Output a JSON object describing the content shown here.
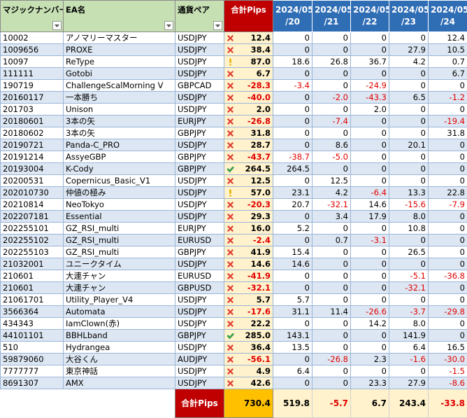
{
  "table": {
    "headers": {
      "magic": "マジックナンバー",
      "ea": "EA名",
      "pair": "通貨ペア",
      "total": "合計Pips",
      "dates": [
        [
          "2024/05",
          "/20"
        ],
        [
          "2024/05",
          "/21"
        ],
        [
          "2024/05",
          "/22"
        ],
        [
          "2024/05",
          "/23"
        ],
        [
          "2024/05",
          "/24"
        ]
      ]
    },
    "rows": [
      {
        "magic": "10002",
        "ea": "アノマリーマスター",
        "pair": "USDJPY",
        "status": "bad",
        "total": "12.4",
        "daily": [
          "0",
          "0",
          "0",
          "0",
          "12.4"
        ]
      },
      {
        "magic": "1009656",
        "ea": "PROXE",
        "pair": "USDJPY",
        "status": "bad",
        "total": "38.4",
        "daily": [
          "0",
          "0",
          "0",
          "27.9",
          "10.5"
        ]
      },
      {
        "magic": "10097",
        "ea": "ReType",
        "pair": "USDJPY",
        "status": "warn",
        "total": "87.0",
        "daily": [
          "18.6",
          "26.8",
          "36.7",
          "4.2",
          "0.7"
        ]
      },
      {
        "magic": "111111",
        "ea": "Gotobi",
        "pair": "USDJPY",
        "status": "bad",
        "total": "6.7",
        "daily": [
          "0",
          "0",
          "0",
          "0",
          "6.7"
        ]
      },
      {
        "magic": "190719",
        "ea": "ChallengeScalMorning V",
        "pair": "GBPCAD",
        "status": "bad",
        "total": "-28.3",
        "daily": [
          "-3.4",
          "0",
          "-24.9",
          "0",
          "0"
        ]
      },
      {
        "magic": "20160117",
        "ea": "一本勝ち",
        "pair": "USDJPY",
        "status": "bad",
        "total": "-40.0",
        "daily": [
          "0",
          "-2.0",
          "-43.3",
          "6.5",
          "-1.2"
        ]
      },
      {
        "magic": "201703",
        "ea": "Unison",
        "pair": "USDJPY",
        "status": "bad",
        "total": "2.0",
        "daily": [
          "0",
          "0",
          "2.0",
          "0",
          "0"
        ]
      },
      {
        "magic": "20180601",
        "ea": "3本の矢",
        "pair": "EURJPY",
        "status": "bad",
        "total": "-26.8",
        "daily": [
          "0",
          "-7.4",
          "0",
          "0",
          "-19.4"
        ]
      },
      {
        "magic": "20180602",
        "ea": "3本の矢",
        "pair": "GBPJPY",
        "status": "bad",
        "total": "31.8",
        "daily": [
          "0",
          "0",
          "0",
          "0",
          "31.8"
        ]
      },
      {
        "magic": "20190721",
        "ea": "Panda-C_PRO",
        "pair": "USDJPY",
        "status": "bad",
        "total": "28.7",
        "daily": [
          "0",
          "8.6",
          "0",
          "20.1",
          "0"
        ]
      },
      {
        "magic": "20191214",
        "ea": "AssyeGBP",
        "pair": "GBPJPY",
        "status": "bad",
        "total": "-43.7",
        "daily": [
          "-38.7",
          "-5.0",
          "0",
          "0",
          "0"
        ]
      },
      {
        "magic": "20193004",
        "ea": "K-Cody",
        "pair": "GBPJPY",
        "status": "good",
        "total": "264.5",
        "daily": [
          "264.5",
          "0",
          "0",
          "0",
          "0"
        ]
      },
      {
        "magic": "20200531",
        "ea": "Copernicus_Basic_V1",
        "pair": "USDJPY",
        "status": "bad",
        "total": "12.5",
        "daily": [
          "0",
          "12.5",
          "0",
          "0",
          "0"
        ]
      },
      {
        "magic": "202010730",
        "ea": "仲値の極み",
        "pair": "USDJPY",
        "status": "warn",
        "total": "57.0",
        "daily": [
          "23.1",
          "4.2",
          "-6.4",
          "13.3",
          "22.8"
        ]
      },
      {
        "magic": "20210814",
        "ea": "NeoTokyo",
        "pair": "USDJPY",
        "status": "bad",
        "total": "-20.3",
        "daily": [
          "20.7",
          "-32.1",
          "14.6",
          "-15.6",
          "-7.9"
        ]
      },
      {
        "magic": "202207181",
        "ea": "Essential",
        "pair": "USDJPY",
        "status": "bad",
        "total": "29.3",
        "daily": [
          "0",
          "3.4",
          "17.9",
          "8.0",
          "0"
        ]
      },
      {
        "magic": "202255101",
        "ea": "GZ_RSI_multi",
        "pair": "EURJPY",
        "status": "bad",
        "total": "16.0",
        "daily": [
          "5.2",
          "0",
          "0",
          "10.8",
          "0"
        ]
      },
      {
        "magic": "202255102",
        "ea": "GZ_RSI_multi",
        "pair": "EURUSD",
        "status": "bad",
        "total": "-2.4",
        "daily": [
          "0",
          "0.7",
          "-3.1",
          "0",
          "0"
        ]
      },
      {
        "magic": "202255103",
        "ea": "GZ_RSI_multi",
        "pair": "GBPJPY",
        "status": "bad",
        "total": "41.9",
        "daily": [
          "15.4",
          "0",
          "0",
          "26.5",
          "0"
        ]
      },
      {
        "magic": "21032001",
        "ea": "ユニークタイム",
        "pair": "USDJPY",
        "status": "bad",
        "total": "14.6",
        "daily": [
          "14.6",
          "0",
          "0",
          "0",
          "0"
        ]
      },
      {
        "magic": "210601",
        "ea": "大連チャン",
        "pair": "EURUSD",
        "status": "bad",
        "total": "-41.9",
        "daily": [
          "0",
          "0",
          "0",
          "-5.1",
          "-36.8"
        ]
      },
      {
        "magic": "210601",
        "ea": "大連チャン",
        "pair": "GBPUSD",
        "status": "bad",
        "total": "-32.1",
        "daily": [
          "0",
          "0",
          "0",
          "-32.1",
          "0"
        ]
      },
      {
        "magic": "21061701",
        "ea": "Utility_Player_V4",
        "pair": "USDJPY",
        "status": "bad",
        "total": "5.7",
        "daily": [
          "5.7",
          "0",
          "0",
          "0",
          "0"
        ]
      },
      {
        "magic": "3566364",
        "ea": "Automata",
        "pair": "USDJPY",
        "status": "bad",
        "total": "-17.6",
        "daily": [
          "31.1",
          "11.4",
          "-26.6",
          "-3.7",
          "-29.8"
        ]
      },
      {
        "magic": "434343",
        "ea": "IamClown(赤)",
        "pair": "USDJPY",
        "status": "bad",
        "total": "22.2",
        "daily": [
          "0",
          "0",
          "14.2",
          "8.0",
          "0"
        ]
      },
      {
        "magic": "44101101",
        "ea": "BBHLband",
        "pair": "GBPJPY",
        "status": "good",
        "total": "285.0",
        "daily": [
          "143.1",
          "0",
          "0",
          "141.9",
          "0"
        ]
      },
      {
        "magic": "510",
        "ea": "Hydrangea",
        "pair": "USDJPY",
        "status": "bad",
        "total": "36.4",
        "daily": [
          "13.5",
          "0",
          "0",
          "6.4",
          "16.5"
        ]
      },
      {
        "magic": "59879060",
        "ea": "大谷くん",
        "pair": "AUDJPY",
        "status": "bad",
        "total": "-56.1",
        "daily": [
          "0",
          "-26.8",
          "2.3",
          "-1.6",
          "-30.0"
        ]
      },
      {
        "magic": "7777777",
        "ea": "東京神話",
        "pair": "USDJPY",
        "status": "bad",
        "total": "4.9",
        "daily": [
          "6.4",
          "0",
          "0",
          "0",
          "-1.5"
        ]
      },
      {
        "magic": "8691307",
        "ea": "AMX",
        "pair": "USDJPY",
        "status": "bad",
        "total": "42.6",
        "daily": [
          "0",
          "0",
          "23.3",
          "27.9",
          "-8.6"
        ]
      }
    ],
    "footer": {
      "label": "合計Pips",
      "total": "730.4",
      "daily": [
        "519.8",
        "-5.7",
        "6.7",
        "243.4",
        "-33.8"
      ]
    }
  }
}
